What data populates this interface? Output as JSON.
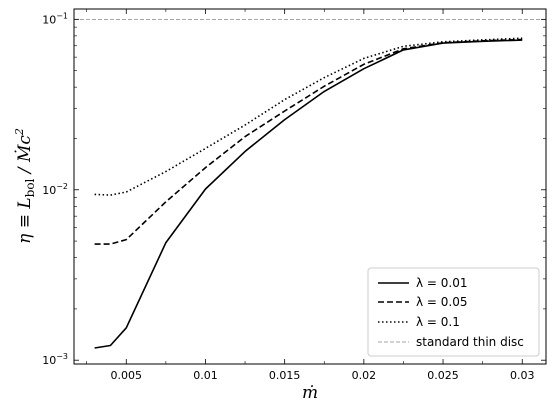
{
  "chart_data": {
    "type": "line",
    "title": "",
    "xlabel": "ṁ",
    "ylabel": "η ≡ L_bol / Ṁc²",
    "ylabel_parts": {
      "eta": "η ≡ L",
      "sub": "bol",
      "rest": " / Ṁc",
      "sup": "2"
    },
    "x_scale": "linear",
    "y_scale": "log",
    "xlim": [
      0.0017,
      0.0315
    ],
    "ylim": [
      0.00095,
      0.115
    ],
    "x_ticks": [
      0.005,
      0.01,
      0.015,
      0.02,
      0.025,
      0.03
    ],
    "x_tick_labels": [
      "0.005",
      "0.01",
      "0.015",
      "0.02",
      "0.025",
      "0.03"
    ],
    "y_ticks": [
      0.001,
      0.01,
      0.1
    ],
    "y_tick_labels": [
      {
        "base": "10",
        "exp": "−3"
      },
      {
        "base": "10",
        "exp": "−2"
      },
      {
        "base": "10",
        "exp": "−1"
      }
    ],
    "grid": false,
    "legend_position": "bottom-right",
    "series": [
      {
        "name": "λ = 0.01",
        "style": "solid",
        "color": "#000000",
        "x": [
          0.003,
          0.004,
          0.005,
          0.0075,
          0.01,
          0.0125,
          0.015,
          0.0175,
          0.02,
          0.0225,
          0.025,
          0.0275,
          0.03
        ],
        "y": [
          0.00118,
          0.00122,
          0.00155,
          0.0049,
          0.0101,
          0.0168,
          0.0258,
          0.0378,
          0.0513,
          0.0662,
          0.0725,
          0.0743,
          0.0755
        ]
      },
      {
        "name": "λ = 0.05",
        "style": "dashed",
        "color": "#000000",
        "x": [
          0.003,
          0.004,
          0.005,
          0.0075,
          0.01,
          0.0125,
          0.015,
          0.0175,
          0.02,
          0.0225,
          0.025,
          0.0275,
          0.03
        ],
        "y": [
          0.0048,
          0.0048,
          0.0051,
          0.0085,
          0.0135,
          0.0205,
          0.029,
          0.0405,
          0.0545,
          0.0672,
          0.0728,
          0.0748,
          0.0762
        ]
      },
      {
        "name": "λ = 0.1",
        "style": "dotted",
        "color": "#000000",
        "x": [
          0.003,
          0.004,
          0.005,
          0.0075,
          0.01,
          0.0125,
          0.015,
          0.0175,
          0.02,
          0.0225,
          0.025,
          0.0275,
          0.03
        ],
        "y": [
          0.0094,
          0.0093,
          0.0097,
          0.0128,
          0.0175,
          0.024,
          0.0338,
          0.0455,
          0.059,
          0.0695,
          0.0738,
          0.0758,
          0.0775
        ]
      }
    ],
    "reference_lines": [
      {
        "name": "standard thin disc",
        "y": 0.1,
        "style": "dashed",
        "color": "#888888"
      }
    ]
  }
}
